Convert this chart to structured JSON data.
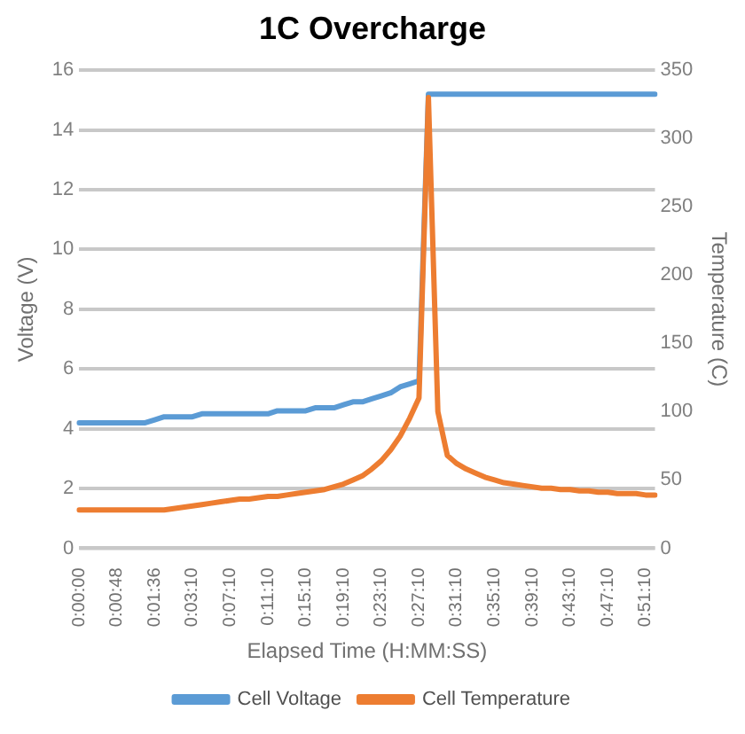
{
  "chart_data": {
    "type": "line",
    "title": "1C Overcharge",
    "xlabel": "Elapsed Time (H:MM:SS)",
    "ylabel": "Voltage (V)",
    "y2label": "Temperature (C)",
    "categories": [
      "0:00:00",
      null,
      null,
      null,
      "0:00:48",
      null,
      null,
      null,
      "0:01:36",
      null,
      null,
      null,
      "0:03:10",
      null,
      null,
      null,
      "0:07:10",
      null,
      null,
      null,
      "0:11:10",
      null,
      null,
      null,
      "0:15:10",
      null,
      null,
      null,
      "0:19:10",
      null,
      null,
      null,
      "0:23:10",
      null,
      null,
      null,
      "0:27:10",
      null,
      null,
      null,
      "0:31:10",
      null,
      null,
      null,
      "0:35:10",
      null,
      null,
      null,
      "0:39:10",
      null,
      null,
      null,
      "0:43:10",
      null,
      null,
      null,
      "0:47:10",
      null,
      null,
      null,
      "0:51:10",
      null
    ],
    "series": [
      {
        "name": "Cell Voltage",
        "color": "#5b9bd5",
        "values": [
          4.2,
          4.2,
          4.2,
          4.2,
          4.2,
          4.2,
          4.2,
          4.2,
          4.3,
          4.4,
          4.4,
          4.4,
          4.4,
          4.5,
          4.5,
          4.5,
          4.5,
          4.5,
          4.5,
          4.5,
          4.5,
          4.6,
          4.6,
          4.6,
          4.6,
          4.7,
          4.7,
          4.7,
          4.8,
          4.9,
          4.9,
          5.0,
          5.1,
          5.2,
          5.4,
          5.5,
          5.6,
          15.2,
          15.2,
          15.2,
          15.2,
          15.2,
          15.2,
          15.2,
          15.2,
          15.2,
          15.2,
          15.2,
          15.2,
          15.2,
          15.2,
          15.2,
          15.2,
          15.2,
          15.2,
          15.2,
          15.2,
          15.2,
          15.2,
          15.2,
          15.2,
          15.2
        ]
      },
      {
        "name": "Cell Temperature",
        "color": "#ed7d31",
        "axis": "y2",
        "values": [
          28,
          28,
          28,
          28,
          28,
          28,
          28,
          28,
          28,
          28,
          29,
          30,
          31,
          32,
          33,
          34,
          35,
          36,
          36,
          37,
          38,
          38,
          39,
          40,
          41,
          42,
          43,
          45,
          47,
          50,
          53,
          58,
          64,
          72,
          82,
          95,
          110,
          330,
          100,
          68,
          62,
          58,
          55,
          52,
          50,
          48,
          47,
          46,
          45,
          44,
          44,
          43,
          43,
          42,
          42,
          41,
          41,
          40,
          40,
          40,
          39,
          39
        ]
      }
    ],
    "ylim": [
      0,
      16
    ],
    "yticks": [
      0,
      2,
      4,
      6,
      8,
      10,
      12,
      14,
      16
    ],
    "y2lim": [
      0,
      350
    ],
    "y2ticks": [
      0,
      50,
      100,
      150,
      200,
      250,
      300,
      350
    ],
    "grid": "y",
    "legend": "bottom",
    "marker": "none",
    "line_style": "solid"
  }
}
